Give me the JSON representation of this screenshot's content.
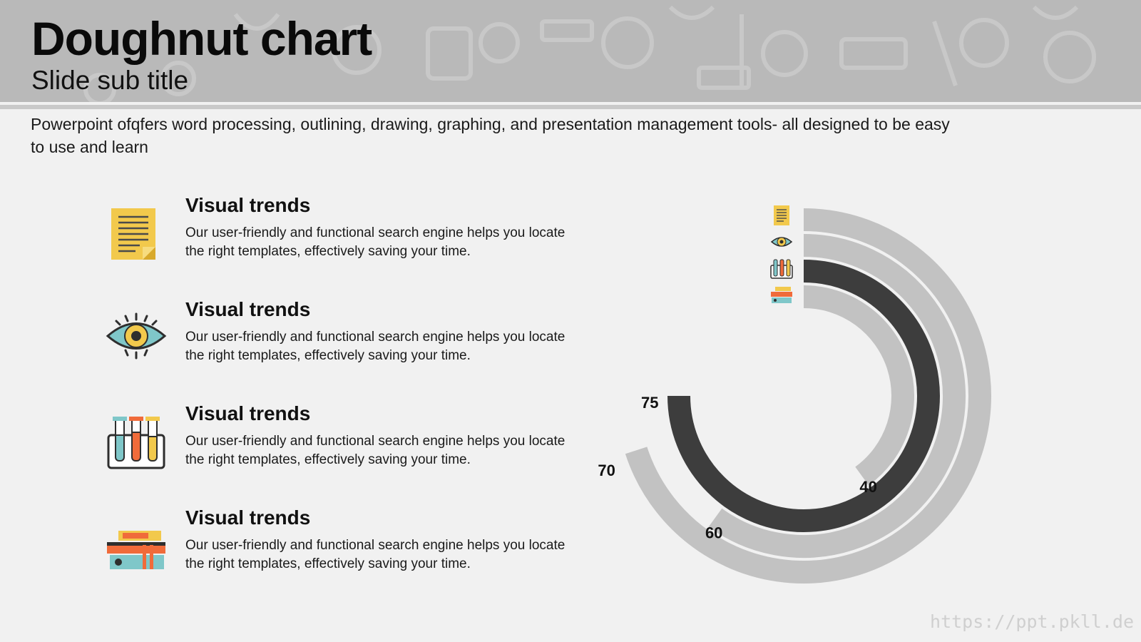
{
  "header": {
    "title": "Doughnut chart",
    "subtitle": "Slide sub title"
  },
  "intro": "Powerpoint ofqfers word processing, outlining, drawing, graphing, and presentation management tools- all designed to be easy to use and learn",
  "items": [
    {
      "heading": "Visual trends",
      "text": "Our user-friendly and functional search engine helps you locate the right templates, effectively saving your time.",
      "icon": "notepad-icon"
    },
    {
      "heading": "Visual trends",
      "text": "Our user-friendly and functional search engine helps you locate the right templates, effectively saving your time.",
      "icon": "eye-icon"
    },
    {
      "heading": "Visual trends",
      "text": "Our user-friendly and functional search engine helps you locate the right templates, effectively saving your time.",
      "icon": "test-tubes-icon"
    },
    {
      "heading": "Visual trends",
      "text": "Our user-friendly and functional search engine helps you locate the right templates, effectively saving your time.",
      "icon": "books-icon"
    }
  ],
  "chart_data": {
    "type": "doughnut",
    "title": "",
    "max": 100,
    "series": [
      {
        "value": 70,
        "label": "70",
        "color": "#c2c2c2",
        "icon": "notepad-icon"
      },
      {
        "value": 60,
        "label": "60",
        "color": "#c2c2c2",
        "icon": "eye-icon"
      },
      {
        "value": 75,
        "label": "75",
        "color": "#3d3d3d",
        "icon": "test-tubes-icon"
      },
      {
        "value": 40,
        "label": "40",
        "color": "#c2c2c2",
        "icon": "books-icon"
      }
    ]
  },
  "watermark": "https://ppt.pkll.de"
}
